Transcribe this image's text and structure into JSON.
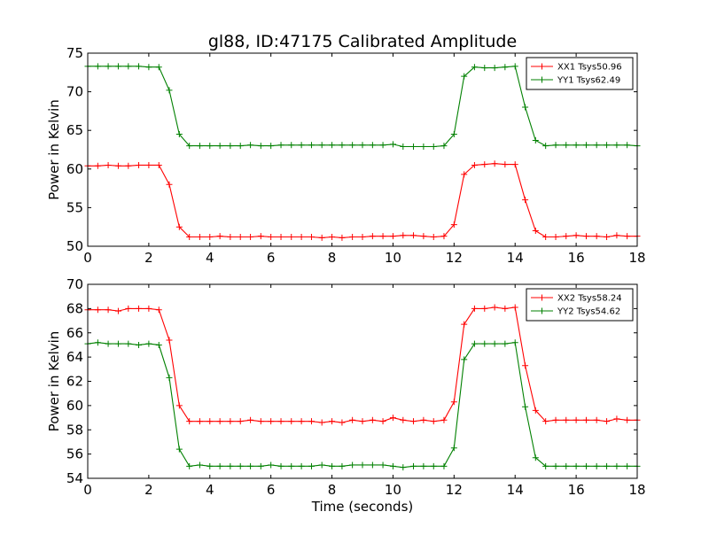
{
  "title": "gl88, ID:47175 Calibrated Amplitude",
  "chart_data": [
    {
      "type": "line",
      "ylabel": "Power in Kelvin",
      "xlabel": "",
      "xlim": [
        0,
        18
      ],
      "ylim": [
        50,
        75
      ],
      "xticks": [
        0,
        2,
        4,
        6,
        8,
        10,
        12,
        14,
        16,
        18
      ],
      "yticks": [
        50,
        55,
        60,
        65,
        70,
        75
      ],
      "legend_position": "top-right",
      "x": [
        0.0,
        0.33,
        0.67,
        1.0,
        1.33,
        1.67,
        2.0,
        2.33,
        2.67,
        3.0,
        3.33,
        3.67,
        4.0,
        4.33,
        4.67,
        5.0,
        5.33,
        5.67,
        6.0,
        6.33,
        6.67,
        7.0,
        7.33,
        7.67,
        8.0,
        8.33,
        8.67,
        9.0,
        9.33,
        9.67,
        10.0,
        10.33,
        10.67,
        11.0,
        11.33,
        11.67,
        12.0,
        12.33,
        12.67,
        13.0,
        13.33,
        13.67,
        14.0,
        14.33,
        14.67,
        15.0,
        15.33,
        15.67,
        16.0,
        16.33,
        16.67,
        17.0,
        17.33,
        17.67,
        18.0
      ],
      "series": [
        {
          "name": "XX1 Tsys50.96",
          "color": "#ff0000",
          "values": [
            60.4,
            60.4,
            60.5,
            60.4,
            60.4,
            60.5,
            60.5,
            60.5,
            58.0,
            52.5,
            51.2,
            51.2,
            51.2,
            51.3,
            51.2,
            51.2,
            51.2,
            51.3,
            51.2,
            51.2,
            51.2,
            51.2,
            51.2,
            51.1,
            51.2,
            51.1,
            51.2,
            51.2,
            51.3,
            51.3,
            51.3,
            51.4,
            51.4,
            51.3,
            51.2,
            51.3,
            52.8,
            59.3,
            60.5,
            60.6,
            60.7,
            60.6,
            60.6,
            56.0,
            52.0,
            51.2,
            51.2,
            51.3,
            51.4,
            51.3,
            51.3,
            51.2,
            51.4,
            51.3,
            51.3
          ]
        },
        {
          "name": "YY1 Tsys62.49",
          "color": "#008000",
          "values": [
            73.3,
            73.3,
            73.3,
            73.3,
            73.3,
            73.3,
            73.2,
            73.2,
            70.2,
            64.5,
            63.0,
            63.0,
            63.0,
            63.0,
            63.0,
            63.0,
            63.1,
            63.0,
            63.0,
            63.1,
            63.1,
            63.1,
            63.1,
            63.1,
            63.1,
            63.1,
            63.1,
            63.1,
            63.1,
            63.1,
            63.2,
            62.9,
            62.9,
            62.9,
            62.9,
            63.0,
            64.5,
            72.0,
            73.2,
            73.1,
            73.1,
            73.2,
            73.3,
            68.0,
            63.7,
            63.0,
            63.1,
            63.1,
            63.1,
            63.1,
            63.1,
            63.1,
            63.1,
            63.1,
            63.0
          ]
        }
      ]
    },
    {
      "type": "line",
      "ylabel": "Power in Kelvin",
      "xlabel": "Time (seconds)",
      "xlim": [
        0,
        18
      ],
      "ylim": [
        54,
        70
      ],
      "xticks": [
        0,
        2,
        4,
        6,
        8,
        10,
        12,
        14,
        16,
        18
      ],
      "yticks": [
        54,
        56,
        58,
        60,
        62,
        64,
        66,
        68,
        70
      ],
      "legend_position": "top-right",
      "x": [
        0.0,
        0.33,
        0.67,
        1.0,
        1.33,
        1.67,
        2.0,
        2.33,
        2.67,
        3.0,
        3.33,
        3.67,
        4.0,
        4.33,
        4.67,
        5.0,
        5.33,
        5.67,
        6.0,
        6.33,
        6.67,
        7.0,
        7.33,
        7.67,
        8.0,
        8.33,
        8.67,
        9.0,
        9.33,
        9.67,
        10.0,
        10.33,
        10.67,
        11.0,
        11.33,
        11.67,
        12.0,
        12.33,
        12.67,
        13.0,
        13.33,
        13.67,
        14.0,
        14.33,
        14.67,
        15.0,
        15.33,
        15.67,
        16.0,
        16.33,
        16.67,
        17.0,
        17.33,
        17.67,
        18.0
      ],
      "series": [
        {
          "name": "XX2 Tsys58.24",
          "color": "#ff0000",
          "values": [
            67.9,
            67.9,
            67.9,
            67.8,
            68.0,
            68.0,
            68.0,
            67.9,
            65.4,
            60.0,
            58.7,
            58.7,
            58.7,
            58.7,
            58.7,
            58.7,
            58.8,
            58.7,
            58.7,
            58.7,
            58.7,
            58.7,
            58.7,
            58.6,
            58.7,
            58.6,
            58.8,
            58.7,
            58.8,
            58.7,
            59.0,
            58.8,
            58.7,
            58.8,
            58.7,
            58.8,
            60.3,
            66.7,
            68.0,
            68.0,
            68.1,
            68.0,
            68.1,
            63.3,
            59.6,
            58.7,
            58.8,
            58.8,
            58.8,
            58.8,
            58.8,
            58.7,
            58.9,
            58.8,
            58.8
          ]
        },
        {
          "name": "YY2 Tsys54.62",
          "color": "#008000",
          "values": [
            65.1,
            65.2,
            65.1,
            65.1,
            65.1,
            65.0,
            65.1,
            65.0,
            62.3,
            56.4,
            55.0,
            55.1,
            55.0,
            55.0,
            55.0,
            55.0,
            55.0,
            55.0,
            55.1,
            55.0,
            55.0,
            55.0,
            55.0,
            55.1,
            55.0,
            55.0,
            55.1,
            55.1,
            55.1,
            55.1,
            55.0,
            54.9,
            55.0,
            55.0,
            55.0,
            55.0,
            56.5,
            63.8,
            65.1,
            65.1,
            65.1,
            65.1,
            65.2,
            59.9,
            55.7,
            55.0,
            55.0,
            55.0,
            55.0,
            55.0,
            55.0,
            55.0,
            55.0,
            55.0,
            55.0
          ]
        }
      ]
    }
  ]
}
